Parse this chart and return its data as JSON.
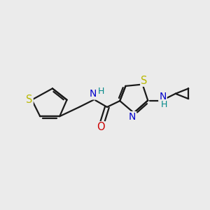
{
  "bg_color": "#ebebeb",
  "bond_color": "#1a1a1a",
  "S_color": "#b8b800",
  "N_color": "#0000cc",
  "O_color": "#cc0000",
  "H_color": "#008888",
  "line_width": 1.6,
  "figsize": [
    3.0,
    3.0
  ],
  "dpi": 100,
  "xlim": [
    0,
    10
  ],
  "ylim": [
    0,
    10
  ]
}
